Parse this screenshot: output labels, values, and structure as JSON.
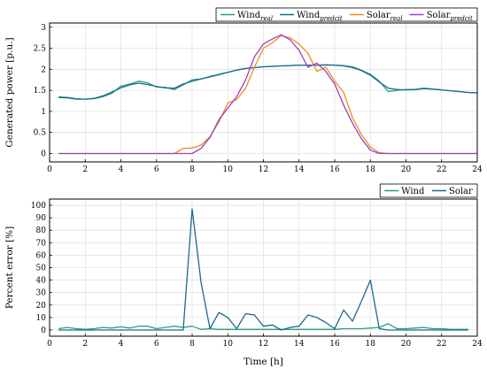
{
  "colors": {
    "wind_real": "#2a9d86",
    "wind_pred": "#1a6a8c",
    "solar_real": "#f28c1c",
    "solar_pred": "#9b3fc7",
    "wind_err": "#2a9d86",
    "solar_err": "#1a6a8c"
  },
  "chart_data": [
    {
      "type": "line",
      "title": "",
      "xlabel": "",
      "ylabel": "Generated power [p.u.]",
      "xlim": [
        0,
        24
      ],
      "ylim": [
        -0.2,
        3.1
      ],
      "xticks": [
        0,
        2,
        4,
        6,
        8,
        10,
        12,
        14,
        16,
        18,
        20,
        22,
        24
      ],
      "yticks": [
        0,
        0.5,
        1,
        1.5,
        2,
        2.5,
        3
      ],
      "grid": true,
      "legend_position": "top-right",
      "series": [
        {
          "name": "Wind",
          "sub": "real",
          "color_key": "wind_real",
          "x": [
            0.5,
            1,
            1.5,
            2,
            2.5,
            3,
            3.5,
            4,
            4.5,
            5,
            5.5,
            6,
            6.5,
            7,
            7.5,
            8,
            8.5,
            9,
            9.5,
            10,
            10.5,
            11,
            11.5,
            12,
            12.5,
            13,
            13.5,
            14,
            14.5,
            15,
            15.5,
            16,
            16.5,
            17,
            17.5,
            18,
            18.5,
            19,
            19.5,
            20,
            20.5,
            21,
            21.5,
            22,
            22.5,
            23,
            23.5,
            24
          ],
          "y": [
            1.33,
            1.32,
            1.29,
            1.29,
            1.3,
            1.35,
            1.43,
            1.6,
            1.65,
            1.72,
            1.68,
            1.58,
            1.57,
            1.52,
            1.63,
            1.75,
            1.77,
            1.83,
            1.88,
            1.93,
            1.98,
            2.02,
            2.04,
            2.06,
            2.07,
            2.08,
            2.09,
            2.1,
            2.1,
            2.1,
            2.11,
            2.1,
            2.09,
            2.06,
            1.98,
            1.88,
            1.72,
            1.47,
            1.5,
            1.52,
            1.52,
            1.55,
            1.53,
            1.51,
            1.49,
            1.47,
            1.45,
            1.44
          ]
        },
        {
          "name": "Wind",
          "sub": "predcit",
          "color_key": "wind_pred",
          "x": [
            0.5,
            1,
            1.5,
            2,
            2.5,
            3,
            3.5,
            4,
            4.5,
            5,
            5.5,
            6,
            6.5,
            7,
            7.5,
            8,
            8.5,
            9,
            9.5,
            10,
            10.5,
            11,
            11.5,
            12,
            12.5,
            13,
            13.5,
            14,
            14.5,
            15,
            15.5,
            16,
            16.5,
            17,
            17.5,
            18,
            18.5,
            19,
            19.5,
            20,
            20.5,
            21,
            21.5,
            22,
            22.5,
            23,
            23.5,
            24
          ],
          "y": [
            1.34,
            1.33,
            1.3,
            1.29,
            1.31,
            1.37,
            1.46,
            1.56,
            1.63,
            1.67,
            1.64,
            1.59,
            1.56,
            1.55,
            1.65,
            1.72,
            1.77,
            1.82,
            1.87,
            1.93,
            1.98,
            2.02,
            2.04,
            2.06,
            2.07,
            2.08,
            2.09,
            2.1,
            2.1,
            2.1,
            2.1,
            2.1,
            2.08,
            2.04,
            1.97,
            1.86,
            1.7,
            1.55,
            1.52,
            1.51,
            1.52,
            1.54,
            1.53,
            1.51,
            1.49,
            1.47,
            1.45,
            1.44
          ]
        },
        {
          "name": "Solar",
          "sub": "real",
          "color_key": "solar_real",
          "x": [
            0.5,
            1,
            2,
            3,
            4,
            5,
            6,
            6.5,
            7,
            7.5,
            8,
            8.5,
            9,
            9.5,
            10,
            10.5,
            11,
            11.5,
            12,
            12.5,
            13,
            13.5,
            14,
            14.5,
            15,
            15.5,
            16,
            16.5,
            17,
            17.5,
            18,
            18.5,
            19,
            20,
            21,
            22,
            23,
            24
          ],
          "y": [
            0,
            0,
            0,
            0,
            0,
            0,
            0,
            0,
            0,
            0.12,
            0.13,
            0.2,
            0.4,
            0.75,
            1.2,
            1.28,
            1.55,
            2.05,
            2.5,
            2.63,
            2.8,
            2.75,
            2.6,
            2.38,
            1.95,
            2.05,
            1.72,
            1.45,
            0.85,
            0.45,
            0.15,
            0.02,
            0,
            0,
            0,
            0,
            0,
            0
          ]
        },
        {
          "name": "Solar",
          "sub": "predcit",
          "color_key": "solar_pred",
          "x": [
            0.5,
            1,
            2,
            3,
            4,
            5,
            6,
            7,
            7.5,
            8,
            8.5,
            9,
            9.5,
            10,
            10.5,
            11,
            11.5,
            12,
            12.5,
            13,
            13.5,
            14,
            14.5,
            15,
            15.5,
            16,
            16.5,
            17,
            17.5,
            18,
            18.5,
            19,
            20,
            21,
            22,
            23,
            24
          ],
          "y": [
            0,
            0,
            0,
            0,
            0,
            0,
            0,
            0,
            0,
            0,
            0.12,
            0.38,
            0.8,
            1.08,
            1.35,
            1.75,
            2.3,
            2.6,
            2.72,
            2.82,
            2.7,
            2.45,
            2.05,
            2.15,
            1.95,
            1.65,
            1.15,
            0.72,
            0.35,
            0.08,
            0,
            0,
            0,
            0,
            0,
            0,
            0
          ]
        }
      ]
    },
    {
      "type": "line",
      "title": "",
      "xlabel": "Time [h]",
      "ylabel": "Percent error [%]",
      "xlim": [
        0,
        24
      ],
      "ylim": [
        -5,
        105
      ],
      "xticks": [
        0,
        2,
        4,
        6,
        8,
        10,
        12,
        14,
        16,
        18,
        20,
        22,
        24
      ],
      "yticks": [
        0,
        10,
        20,
        30,
        40,
        50,
        60,
        70,
        80,
        90,
        100
      ],
      "grid": true,
      "legend_position": "top-right",
      "series": [
        {
          "name": "Wind",
          "color_key": "wind_err",
          "x": [
            0.5,
            1,
            1.5,
            2,
            2.5,
            3,
            3.5,
            4,
            4.5,
            5,
            5.5,
            6,
            6.5,
            7,
            7.5,
            8,
            8.5,
            9,
            9.5,
            10,
            10.5,
            11,
            11.5,
            12,
            12.5,
            13,
            13.5,
            14,
            14.5,
            15,
            15.5,
            16,
            16.5,
            17,
            17.5,
            18,
            18.5,
            19,
            19.5,
            20,
            20.5,
            21,
            21.5,
            22,
            22.5,
            23,
            23.5
          ],
          "y": [
            1,
            2,
            1,
            0.5,
            1,
            2,
            1.5,
            2.5,
            1.5,
            3,
            3,
            1,
            2,
            3,
            2,
            3,
            0.5,
            1,
            0.5,
            0.5,
            0.5,
            0.5,
            0.5,
            0.5,
            0.5,
            0.5,
            0.5,
            0.5,
            0.5,
            0.5,
            0.5,
            0.5,
            1,
            1,
            1,
            1.5,
            2,
            5,
            1,
            1,
            1.5,
            2,
            1,
            1,
            0.5,
            0.5,
            0.5
          ]
        },
        {
          "name": "Solar",
          "color_key": "solar_err",
          "x": [
            0.5,
            1,
            1.5,
            2,
            2.5,
            3,
            3.5,
            4,
            4.5,
            5,
            5.5,
            6,
            6.5,
            7,
            7.5,
            8,
            8.5,
            9,
            9.5,
            10,
            10.5,
            11,
            11.5,
            12,
            12.5,
            13,
            13.5,
            14,
            14.5,
            15,
            15.5,
            16,
            16.5,
            17,
            17.5,
            18,
            18.5,
            19,
            19.5,
            20,
            20.5,
            21,
            21.5,
            22,
            22.5,
            23,
            23.5
          ],
          "y": [
            0,
            0,
            0,
            0,
            0,
            0,
            0,
            0,
            0,
            0,
            0,
            0,
            0,
            0,
            0,
            97,
            38,
            1,
            14,
            10,
            1,
            13,
            12,
            3,
            4,
            0,
            2,
            3,
            12,
            10,
            6,
            1,
            16,
            7,
            23,
            40,
            1,
            0,
            0,
            0,
            0,
            0,
            0,
            0,
            0,
            0,
            0
          ]
        }
      ]
    }
  ]
}
